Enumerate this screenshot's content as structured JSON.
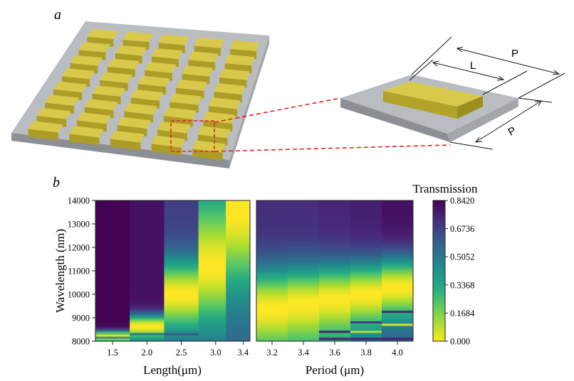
{
  "figure": {
    "panel_a_label": "a",
    "panel_b_label": "b",
    "dim_label_L": "L",
    "dim_label_P_top": "P",
    "dim_label_P_side": "P"
  },
  "colors": {
    "substrate_top": "#b9bcc0",
    "substrate_side": "#8f9296",
    "block_top": "#d8c94a",
    "block_front": "#b2a229",
    "zoom_line": "#e0231e",
    "heatmap_low": "#fde725",
    "heatmap_high": "#440154"
  },
  "chart_data": [
    {
      "type": "heatmap",
      "name": "transmission-vs-length",
      "title": "",
      "xlabel": "Length(μm)",
      "ylabel": "Wavelength (nm)",
      "xlim": [
        1.25,
        3.5
      ],
      "ylim": [
        8000,
        14000
      ],
      "x_ticks": [
        1.5,
        2.0,
        2.5,
        3.0,
        3.4
      ],
      "x_tick_labels": [
        "1.5",
        "2.0",
        "2.5",
        "3.0",
        "3.4"
      ],
      "y_ticks": [
        8000,
        9000,
        10000,
        11000,
        12000,
        13000,
        14000
      ],
      "y_tick_labels": [
        "8000",
        "9000",
        "10000",
        "11000",
        "12000",
        "13000",
        "14000"
      ],
      "columns": [
        {
          "x": 1.5,
          "min_wavelength": 8200,
          "dip_width": 250,
          "high_side": 0.84,
          "low_side": 0.82,
          "lines": [
            {
              "wavelength": 8150,
              "value": 0.4
            },
            {
              "wavelength": 8350,
              "value": 0.25
            }
          ]
        },
        {
          "x": 2.0,
          "min_wavelength": 8650,
          "dip_width": 500,
          "high_side": 0.8,
          "low_side": 0.55,
          "lines": [
            {
              "wavelength": 8300,
              "value": 0.5
            }
          ]
        },
        {
          "x": 2.5,
          "min_wavelength": 10000,
          "dip_width": 1500,
          "high_side": 0.68,
          "low_side": 0.6,
          "lines": [
            {
              "wavelength": 8300,
              "value": 0.6
            }
          ]
        },
        {
          "x": 3.0,
          "min_wavelength": 11200,
          "dip_width": 2500,
          "high_side": 0.45,
          "low_side": 0.6,
          "lines": []
        },
        {
          "x": 3.4,
          "min_wavelength": 13500,
          "dip_width": 3200,
          "high_side": 0.02,
          "low_side": 0.58,
          "lines": []
        }
      ]
    },
    {
      "type": "heatmap",
      "name": "transmission-vs-period",
      "title": "",
      "xlabel": "Period (μm)",
      "ylabel": "",
      "xlim": [
        3.1,
        4.1
      ],
      "ylim": [
        8000,
        14000
      ],
      "x_ticks": [
        3.2,
        3.4,
        3.6,
        3.8,
        4.0
      ],
      "x_tick_labels": [
        "3.2",
        "3.4",
        "3.6",
        "3.8",
        "4.0"
      ],
      "columns": [
        {
          "x": 3.2,
          "min_wavelength": 9400,
          "dip_width": 1700,
          "high_side": 0.72,
          "low_side": 0.45,
          "lines": []
        },
        {
          "x": 3.4,
          "min_wavelength": 9600,
          "dip_width": 1600,
          "high_side": 0.72,
          "low_side": 0.4,
          "lines": []
        },
        {
          "x": 3.6,
          "min_wavelength": 9800,
          "dip_width": 1500,
          "high_side": 0.74,
          "low_side": 0.45,
          "lines": [
            {
              "wavelength": 8400,
              "value": 0.75
            },
            {
              "wavelength": 8100,
              "value": 0.75
            }
          ]
        },
        {
          "x": 3.8,
          "min_wavelength": 10000,
          "dip_width": 1400,
          "high_side": 0.76,
          "low_side": 0.55,
          "lines": [
            {
              "wavelength": 8400,
              "value": 0.1
            },
            {
              "wavelength": 8800,
              "value": 0.7
            },
            {
              "wavelength": 8100,
              "value": 0.75
            }
          ]
        },
        {
          "x": 4.0,
          "min_wavelength": 10300,
          "dip_width": 1300,
          "high_side": 0.8,
          "low_side": 0.6,
          "lines": [
            {
              "wavelength": 8700,
              "value": 0.05
            },
            {
              "wavelength": 9250,
              "value": 0.75
            },
            {
              "wavelength": 8100,
              "value": 0.75
            }
          ]
        }
      ]
    },
    {
      "type": "colorbar",
      "name": "transmission-colorbar",
      "title": "Transmission",
      "colormap": "viridis_r",
      "range": [
        0.0,
        0.842
      ],
      "ticks": [
        0.842,
        0.6736,
        0.5052,
        0.3368,
        0.1684,
        0.0
      ],
      "tick_labels": [
        "0.8420",
        "0.6736",
        "0.5052",
        "0.3368",
        "0.1684",
        "0.000"
      ]
    }
  ]
}
